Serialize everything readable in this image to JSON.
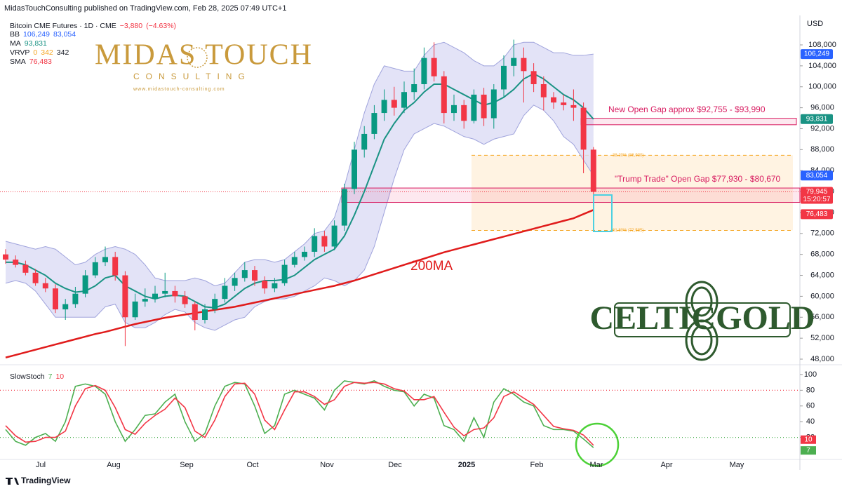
{
  "header": "MidasTouchConsulting published on TradingView.com, Feb 28, 2025 07:49 UTC+1",
  "footer": "TradingView",
  "logos": {
    "midas": "MIDAS TOUCH",
    "consulting": "CONSULTING",
    "url": "www.midastouch-consulting.com",
    "celtic": "CELTICGOLD"
  },
  "chart_data": {
    "type": "candlestick",
    "symbol": "Bitcoin CME Futures · 1D · CME",
    "change": {
      "value": -3880,
      "label": "−3,880"
    },
    "change_pct": {
      "value": -4.63,
      "label": "(−4.63%)"
    },
    "currency": "USD",
    "up_color": "#089981",
    "down_color": "#f23645",
    "x_labels": [
      "Jul",
      "Aug",
      "Sep",
      "Oct",
      "Nov",
      "Dec",
      "2025",
      "Feb",
      "Mar",
      "Apr",
      "May"
    ],
    "open": [
      68000,
      67000,
      66000,
      64500,
      62500,
      61500,
      57500,
      58500,
      60500,
      64000,
      66500,
      67500,
      64000,
      56000,
      59000,
      59500,
      60500,
      61000,
      60000,
      58500,
      55500,
      57500,
      59500,
      62000,
      63500,
      65000,
      63000,
      61500,
      62500,
      66000,
      67500,
      68500,
      71500,
      69500,
      73500,
      80500,
      88000,
      91000,
      95000,
      97500,
      96000,
      99000,
      100500,
      105500,
      102000,
      95000,
      96500,
      93500,
      98500,
      94000,
      99500,
      104000,
      105500,
      103000,
      100500,
      98000,
      97000,
      96500,
      96000,
      88000
    ],
    "high": [
      69000,
      67800,
      66800,
      65200,
      63500,
      62300,
      59500,
      61800,
      65000,
      67500,
      69500,
      68500,
      64800,
      60500,
      61500,
      62000,
      64500,
      62000,
      61000,
      59000,
      58500,
      60500,
      63500,
      64500,
      66500,
      65800,
      63800,
      63500,
      67000,
      68500,
      69500,
      73000,
      72500,
      74500,
      81500,
      89500,
      92500,
      96500,
      99500,
      100000,
      101000,
      103500,
      107500,
      108500,
      103000,
      98500,
      97500,
      99500,
      99800,
      100500,
      106000,
      109000,
      107500,
      104500,
      102000,
      99000,
      98500,
      99500,
      97000,
      88500
    ],
    "low": [
      66200,
      65500,
      64000,
      62000,
      60800,
      56800,
      55500,
      57800,
      59800,
      63500,
      65800,
      63000,
      50500,
      55500,
      58000,
      58800,
      59800,
      58800,
      57800,
      53500,
      54800,
      56800,
      58800,
      61000,
      62800,
      62000,
      60500,
      60800,
      62000,
      65500,
      66800,
      67500,
      68500,
      68800,
      72500,
      79500,
      86500,
      90000,
      93500,
      94500,
      95000,
      97500,
      99500,
      101000,
      93000,
      93500,
      92000,
      93000,
      92500,
      92000,
      98000,
      102000,
      97000,
      99000,
      95500,
      95800,
      95500,
      93500,
      83500,
      78500
    ],
    "close": [
      67000,
      66000,
      64500,
      62500,
      61500,
      57500,
      58500,
      60500,
      64000,
      66500,
      67500,
      64000,
      56000,
      59000,
      59500,
      60500,
      61000,
      60000,
      58500,
      55500,
      57500,
      59500,
      62000,
      63500,
      65000,
      63000,
      61500,
      62500,
      66000,
      67500,
      68500,
      71500,
      69500,
      73500,
      80500,
      88000,
      91000,
      95000,
      97500,
      96000,
      99000,
      100500,
      105500,
      102000,
      95000,
      96500,
      93500,
      98500,
      94000,
      99500,
      104000,
      105500,
      103000,
      100500,
      98000,
      97000,
      96500,
      96000,
      88000,
      79945
    ],
    "ylim": [
      46930,
      113625
    ],
    "yticks": [
      {
        "value": 48000,
        "label": "48,000"
      },
      {
        "value": 52000,
        "label": "52,000"
      },
      {
        "value": 56000,
        "label": "56,000"
      },
      {
        "value": 60000,
        "label": "60,000"
      },
      {
        "value": 64000,
        "label": "64,000"
      },
      {
        "value": 68000,
        "label": "68,000"
      },
      {
        "value": 72000,
        "label": "72,000"
      },
      {
        "value": 76000,
        "label": "76,000"
      },
      {
        "value": 80000,
        "label": "80,000"
      },
      {
        "value": 84000,
        "label": "84,000"
      },
      {
        "value": 88000,
        "label": "88,000"
      },
      {
        "value": 92000,
        "label": "92,000"
      },
      {
        "value": 96000,
        "label": "96,000"
      },
      {
        "value": 100000,
        "label": "100,000"
      },
      {
        "value": 104000,
        "label": "104,000"
      },
      {
        "value": 108000,
        "label": "108,000"
      }
    ],
    "last_price": {
      "value": 79945,
      "label": "79,945"
    },
    "countdown": "15:20:57",
    "indicators": {
      "bb": {
        "name": "BB",
        "color": "#9fa3dc",
        "fill": "#dcdcf5",
        "upper": {
          "value": 106249,
          "label": "106,249"
        },
        "lower": {
          "value": 83054,
          "label": "83,054"
        },
        "upper_values": [
          70500,
          70000,
          69500,
          69000,
          69500,
          69000,
          67500,
          66000,
          66500,
          68000,
          69000,
          69500,
          69000,
          68000,
          66000,
          63500,
          63000,
          63000,
          63000,
          63500,
          63000,
          62000,
          62500,
          64500,
          66500,
          67000,
          67000,
          66500,
          67000,
          68500,
          70000,
          72000,
          72500,
          75000,
          81000,
          88000,
          95000,
          100500,
          104000,
          103500,
          103000,
          103000,
          106000,
          108000,
          108500,
          107500,
          106500,
          105000,
          104000,
          104000,
          105500,
          108000,
          108500,
          108500,
          107500,
          106500,
          106500,
          106000,
          106000,
          106249
        ],
        "lower_values": [
          62500,
          63000,
          62500,
          61000,
          58500,
          56000,
          56000,
          56000,
          56000,
          56000,
          58000,
          58500,
          55000,
          54000,
          54000,
          55000,
          56500,
          57500,
          57000,
          55000,
          54000,
          53500,
          54500,
          55500,
          56000,
          58000,
          59000,
          59500,
          59500,
          60000,
          61000,
          62000,
          63500,
          63000,
          62000,
          63000,
          65000,
          69500,
          76000,
          82500,
          88000,
          91000,
          92000,
          93000,
          92500,
          91500,
          90500,
          90000,
          89000,
          90000,
          90500,
          91000,
          94500,
          96500,
          95500,
          93500,
          90500,
          89000,
          86000,
          83054
        ]
      },
      "ma": {
        "name": "MA",
        "color": "#1a9384",
        "last": {
          "value": 93831,
          "label": "93,831"
        },
        "values": [
          66500,
          66500,
          66000,
          65000,
          64000,
          62500,
          61500,
          60800,
          61000,
          62000,
          63500,
          64000,
          62000,
          61000,
          60000,
          59500,
          60000,
          60200,
          60000,
          59000,
          58000,
          57800,
          58500,
          60000,
          61500,
          62500,
          63000,
          63000,
          63200,
          64000,
          65500,
          67000,
          68000,
          69000,
          71500,
          75500,
          80000,
          85000,
          90000,
          93000,
          95500,
          97000,
          99000,
          100500,
          100500,
          99500,
          98500,
          97500,
          96500,
          97000,
          98000,
          99500,
          101500,
          102500,
          101500,
          100000,
          98500,
          97500,
          96000,
          93831
        ]
      },
      "vrvp": {
        "name": "VRVP",
        "values": [
          0,
          342,
          342
        ]
      },
      "sma": {
        "name": "SMA",
        "color": "#e01b1b",
        "annotation": "200MA",
        "last": {
          "value": 76483,
          "label": "76,483"
        },
        "values": [
          48300,
          48800,
          49300,
          49800,
          50300,
          50800,
          51300,
          51800,
          52300,
          52800,
          53200,
          53700,
          54200,
          54700,
          55100,
          55500,
          55900,
          56200,
          56500,
          56800,
          57100,
          57400,
          57700,
          58000,
          58400,
          58800,
          59200,
          59600,
          60000,
          60400,
          60800,
          61200,
          61600,
          62000,
          62500,
          63000,
          63600,
          64200,
          64800,
          65400,
          66000,
          66600,
          67200,
          67800,
          68400,
          68900,
          69400,
          69900,
          70400,
          70900,
          71400,
          71900,
          72400,
          72900,
          73400,
          73900,
          74400,
          74900,
          75700,
          76483
        ]
      }
    },
    "zones": [
      {
        "label": "New Open Gap approx $92,755 - $93,990",
        "from": 92755,
        "to": 93990
      },
      {
        "label": "\"Trump Trade\" Open Gap $77,930 - $80,670",
        "from": 77930,
        "to": 80670
      }
    ],
    "fib": [
      {
        "label": "38.20% (86,930)",
        "value": 86930
      },
      {
        "label": "61.80% (72,585)",
        "value": 72585
      }
    ],
    "stoch": {
      "title": "SlowStoch",
      "ylim": [
        -12.5,
        108
      ],
      "yticks": [
        20,
        40,
        60,
        80,
        100
      ],
      "levels": [
        80,
        20
      ],
      "k": {
        "color": "#4caf50",
        "values": [
          30,
          15,
          10,
          20,
          25,
          15,
          40,
          85,
          88,
          85,
          75,
          40,
          15,
          30,
          48,
          50,
          65,
          75,
          40,
          15,
          25,
          60,
          85,
          90,
          88,
          60,
          25,
          35,
          75,
          80,
          75,
          70,
          55,
          80,
          92,
          90,
          88,
          92,
          85,
          80,
          78,
          60,
          75,
          70,
          35,
          30,
          15,
          45,
          20,
          65,
          82,
          75,
          65,
          60,
          35,
          30,
          30,
          28,
          18,
          7
        ]
      },
      "d": {
        "color": "#f23645",
        "values": [
          35,
          22,
          14,
          15,
          20,
          20,
          28,
          60,
          82,
          86,
          80,
          58,
          30,
          24,
          38,
          48,
          56,
          70,
          58,
          28,
          20,
          42,
          72,
          88,
          89,
          75,
          42,
          30,
          55,
          78,
          78,
          72,
          62,
          68,
          85,
          90,
          89,
          90,
          88,
          82,
          79,
          68,
          68,
          72,
          52,
          33,
          22,
          30,
          32,
          45,
          72,
          78,
          70,
          62,
          48,
          34,
          31,
          29,
          23,
          10
        ]
      }
    }
  }
}
